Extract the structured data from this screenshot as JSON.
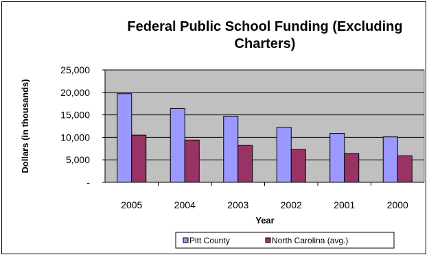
{
  "colors": {
    "plot_background": "#c0c0c0",
    "gridline": "#000000",
    "series_1": "#9999ff",
    "series_2": "#993366"
  },
  "chart_data": {
    "type": "bar",
    "title_line1": "Federal Public School Funding (Excluding",
    "title_line2": "Charters)",
    "xlabel": "Year",
    "ylabel": "Dollars (in thousands)",
    "categories": [
      "2005",
      "2004",
      "2003",
      "2002",
      "2001",
      "2000"
    ],
    "y_ticks": [
      "-",
      "5,000",
      "10,000",
      "15,000",
      "20,000",
      "25,000"
    ],
    "ylim": [
      0,
      25000
    ],
    "grid": true,
    "legend_position": "bottom",
    "series": [
      {
        "name": "Pitt County",
        "values": [
          19700,
          16400,
          14700,
          12200,
          10900,
          10100
        ]
      },
      {
        "name": "North Carolina (avg.)",
        "values": [
          10500,
          9400,
          8200,
          7300,
          6400,
          5900
        ]
      }
    ]
  }
}
